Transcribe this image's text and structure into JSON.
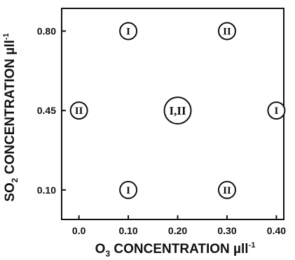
{
  "chart_data": {
    "type": "scatter",
    "title": "",
    "xlabel": {
      "prefix": "O",
      "sub": "3",
      "main": " CONCENTRATION ",
      "unit": "µll",
      "sup": "-1"
    },
    "ylabel": {
      "prefix": "SO",
      "sub": "2",
      "main": " CONCENTRATION ",
      "unit": "µll",
      "sup": "-1"
    },
    "xlim": [
      -0.035,
      0.415
    ],
    "ylim": [
      -0.03,
      0.9
    ],
    "xticks": [
      0.0,
      0.1,
      0.2,
      0.3,
      0.4
    ],
    "xtick_labels": [
      "0.0",
      "0.10",
      "0.20",
      "0.30",
      "0.40"
    ],
    "yticks": [
      0.1,
      0.45,
      0.8
    ],
    "ytick_labels": [
      "0.10",
      "0.45",
      "0.80"
    ],
    "grid": false,
    "points": [
      {
        "x": 0.1,
        "y": 0.8,
        "label": "I",
        "size": "small"
      },
      {
        "x": 0.3,
        "y": 0.8,
        "label": "II",
        "size": "small"
      },
      {
        "x": 0.0,
        "y": 0.45,
        "label": "II",
        "size": "small"
      },
      {
        "x": 0.2,
        "y": 0.45,
        "label": "I,II",
        "size": "large"
      },
      {
        "x": 0.4,
        "y": 0.45,
        "label": "I",
        "size": "small"
      },
      {
        "x": 0.1,
        "y": 0.1,
        "label": "I",
        "size": "small"
      },
      {
        "x": 0.3,
        "y": 0.1,
        "label": "II",
        "size": "small"
      }
    ]
  }
}
